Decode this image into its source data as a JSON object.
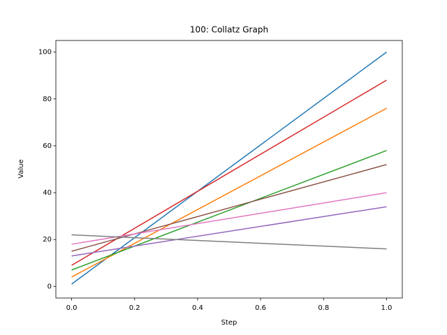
{
  "chart_data": {
    "type": "line",
    "title": "100: Collatz Graph",
    "x_label": "Step",
    "y_label": "Value",
    "x": [
      0,
      1
    ],
    "series": [
      {
        "color": "#1f77b4",
        "values": [
          1,
          100
        ]
      },
      {
        "color": "#ff7f0e",
        "values": [
          4,
          76
        ]
      },
      {
        "color": "#2ca02c",
        "values": [
          7,
          58
        ]
      },
      {
        "color": "#d62728",
        "values": [
          9,
          88
        ]
      },
      {
        "color": "#9467bd",
        "values": [
          13,
          34
        ]
      },
      {
        "color": "#8c564b",
        "values": [
          15,
          52
        ]
      },
      {
        "color": "#e377c2",
        "values": [
          18,
          40
        ]
      },
      {
        "color": "#7f7f7f",
        "values": [
          22,
          16
        ]
      }
    ],
    "xlim": [
      -0.05,
      1.05
    ],
    "xticks": [
      {
        "value": 0,
        "label": "0.0"
      },
      0.2,
      0.4,
      0.6,
      0.8,
      {
        "value": 1,
        "label": "1.0"
      }
    ],
    "ylim": [
      -4.95,
      104.95
    ],
    "yticks": [
      0,
      20,
      40,
      60,
      80,
      100
    ],
    "grid": false
  }
}
